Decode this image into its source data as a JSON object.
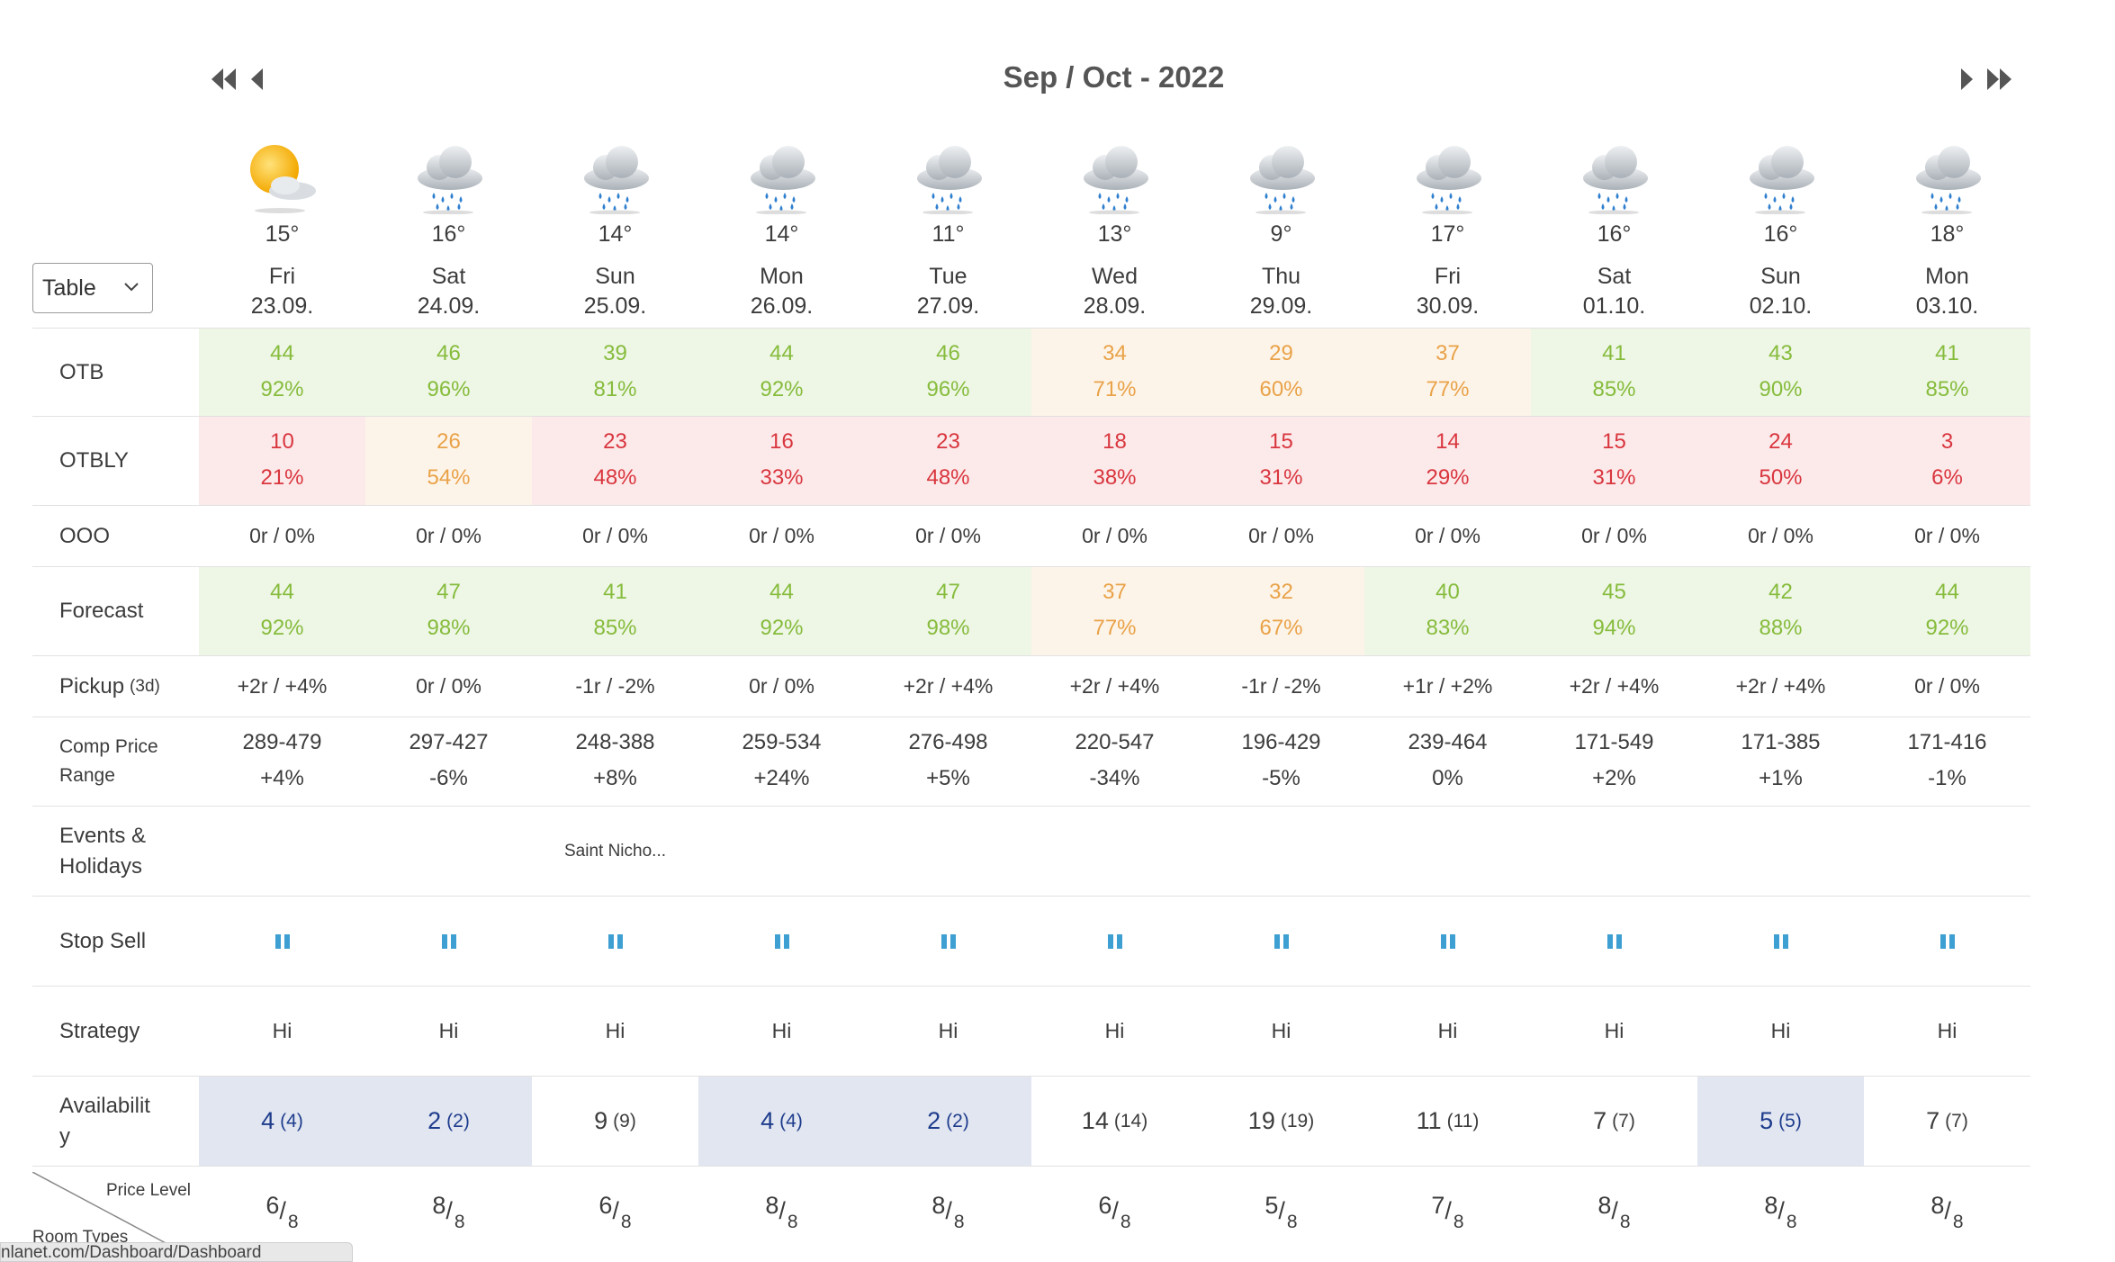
{
  "header": {
    "title": "Sep / Oct - 2022"
  },
  "view_select": {
    "value": "Table"
  },
  "days": [
    {
      "temp": "15°",
      "day": "Fri",
      "date": "23.09.",
      "weather": "sun-cloud-icon"
    },
    {
      "temp": "16°",
      "day": "Sat",
      "date": "24.09.",
      "weather": "rain-cloud-icon"
    },
    {
      "temp": "14°",
      "day": "Sun",
      "date": "25.09.",
      "weather": "rain-cloud-icon"
    },
    {
      "temp": "14°",
      "day": "Mon",
      "date": "26.09.",
      "weather": "rain-cloud-icon"
    },
    {
      "temp": "11°",
      "day": "Tue",
      "date": "27.09.",
      "weather": "rain-cloud-icon"
    },
    {
      "temp": "13°",
      "day": "Wed",
      "date": "28.09.",
      "weather": "rain-cloud-icon"
    },
    {
      "temp": "9°",
      "day": "Thu",
      "date": "29.09.",
      "weather": "rain-cloud-icon"
    },
    {
      "temp": "17°",
      "day": "Fri",
      "date": "30.09.",
      "weather": "rain-cloud-icon"
    },
    {
      "temp": "16°",
      "day": "Sat",
      "date": "01.10.",
      "weather": "rain-cloud-icon"
    },
    {
      "temp": "16°",
      "day": "Sun",
      "date": "02.10.",
      "weather": "rain-cloud-icon"
    },
    {
      "temp": "18°",
      "day": "Mon",
      "date": "03.10.",
      "weather": "rain-cloud-icon"
    }
  ],
  "rows": {
    "otb": {
      "label": "OTB",
      "cells": [
        {
          "v1": "44",
          "v2": "92%",
          "tone": "green"
        },
        {
          "v1": "46",
          "v2": "96%",
          "tone": "green"
        },
        {
          "v1": "39",
          "v2": "81%",
          "tone": "green"
        },
        {
          "v1": "44",
          "v2": "92%",
          "tone": "green"
        },
        {
          "v1": "46",
          "v2": "96%",
          "tone": "green"
        },
        {
          "v1": "34",
          "v2": "71%",
          "tone": "orange"
        },
        {
          "v1": "29",
          "v2": "60%",
          "tone": "orange"
        },
        {
          "v1": "37",
          "v2": "77%",
          "tone": "orange"
        },
        {
          "v1": "41",
          "v2": "85%",
          "tone": "green"
        },
        {
          "v1": "43",
          "v2": "90%",
          "tone": "green"
        },
        {
          "v1": "41",
          "v2": "85%",
          "tone": "green"
        }
      ]
    },
    "otbly": {
      "label": "OTBLY",
      "cells": [
        {
          "v1": "10",
          "v2": "21%",
          "tone": "red"
        },
        {
          "v1": "26",
          "v2": "54%",
          "tone": "orange"
        },
        {
          "v1": "23",
          "v2": "48%",
          "tone": "red"
        },
        {
          "v1": "16",
          "v2": "33%",
          "tone": "red"
        },
        {
          "v1": "23",
          "v2": "48%",
          "tone": "red"
        },
        {
          "v1": "18",
          "v2": "38%",
          "tone": "red"
        },
        {
          "v1": "15",
          "v2": "31%",
          "tone": "red"
        },
        {
          "v1": "14",
          "v2": "29%",
          "tone": "red"
        },
        {
          "v1": "15",
          "v2": "31%",
          "tone": "red"
        },
        {
          "v1": "24",
          "v2": "50%",
          "tone": "red"
        },
        {
          "v1": "3",
          "v2": "6%",
          "tone": "red"
        }
      ]
    },
    "ooo": {
      "label": "OOO",
      "cells": [
        "0r / 0%",
        "0r / 0%",
        "0r / 0%",
        "0r / 0%",
        "0r / 0%",
        "0r / 0%",
        "0r / 0%",
        "0r / 0%",
        "0r / 0%",
        "0r / 0%",
        "0r / 0%"
      ]
    },
    "forecast": {
      "label": "Forecast",
      "cells": [
        {
          "v1": "44",
          "v2": "92%",
          "tone": "green"
        },
        {
          "v1": "47",
          "v2": "98%",
          "tone": "green"
        },
        {
          "v1": "41",
          "v2": "85%",
          "tone": "green"
        },
        {
          "v1": "44",
          "v2": "92%",
          "tone": "green"
        },
        {
          "v1": "47",
          "v2": "98%",
          "tone": "green"
        },
        {
          "v1": "37",
          "v2": "77%",
          "tone": "orange"
        },
        {
          "v1": "32",
          "v2": "67%",
          "tone": "orange"
        },
        {
          "v1": "40",
          "v2": "83%",
          "tone": "green"
        },
        {
          "v1": "45",
          "v2": "94%",
          "tone": "green"
        },
        {
          "v1": "42",
          "v2": "88%",
          "tone": "green"
        },
        {
          "v1": "44",
          "v2": "92%",
          "tone": "green"
        }
      ]
    },
    "pickup": {
      "label": "Pickup",
      "label_sub": "(3d)",
      "cells": [
        "+2r / +4%",
        "0r / 0%",
        "-1r / -2%",
        "0r / 0%",
        "+2r / +4%",
        "+2r / +4%",
        "-1r / -2%",
        "+1r / +2%",
        "+2r / +4%",
        "+2r / +4%",
        "0r / 0%"
      ]
    },
    "comp_price": {
      "label_line1": "Comp Price",
      "label_line2": "Range",
      "cells": [
        {
          "v1": "289-479",
          "v2": "+4%"
        },
        {
          "v1": "297-427",
          "v2": "-6%"
        },
        {
          "v1": "248-388",
          "v2": "+8%"
        },
        {
          "v1": "259-534",
          "v2": "+24%"
        },
        {
          "v1": "276-498",
          "v2": "+5%"
        },
        {
          "v1": "220-547",
          "v2": "-34%"
        },
        {
          "v1": "196-429",
          "v2": "-5%"
        },
        {
          "v1": "239-464",
          "v2": "0%"
        },
        {
          "v1": "171-549",
          "v2": "+2%"
        },
        {
          "v1": "171-385",
          "v2": "+1%"
        },
        {
          "v1": "171-416",
          "v2": "-1%"
        }
      ]
    },
    "events": {
      "label_line1": "Events &",
      "label_line2": "Holidays",
      "cells": [
        "",
        "",
        "Saint Nicho...",
        "",
        "",
        "",
        "",
        "",
        "",
        "",
        ""
      ]
    },
    "stop_sell": {
      "label": "Stop Sell",
      "icon": "pause-icon",
      "color": "#3e9fd2"
    },
    "strategy": {
      "label": "Strategy",
      "cells": [
        "Hi",
        "Hi",
        "Hi",
        "Hi",
        "Hi",
        "Hi",
        "Hi",
        "Hi",
        "Hi",
        "Hi",
        "Hi"
      ]
    },
    "availability": {
      "label_line1": "Availabilit",
      "label_line2": "y",
      "cells": [
        {
          "v": "4",
          "p": "(4)",
          "hl": true
        },
        {
          "v": "2",
          "p": "(2)",
          "hl": true
        },
        {
          "v": "9",
          "p": "(9)",
          "hl": false
        },
        {
          "v": "4",
          "p": "(4)",
          "hl": true
        },
        {
          "v": "2",
          "p": "(2)",
          "hl": true
        },
        {
          "v": "14",
          "p": "(14)",
          "hl": false
        },
        {
          "v": "19",
          "p": "(19)",
          "hl": false
        },
        {
          "v": "11",
          "p": "(11)",
          "hl": false
        },
        {
          "v": "7",
          "p": "(7)",
          "hl": false
        },
        {
          "v": "5",
          "p": "(5)",
          "hl": true
        },
        {
          "v": "7",
          "p": "(7)",
          "hl": false
        }
      ]
    },
    "price_level": {
      "header_top": "Price Level",
      "header_bottom": "Room Types",
      "cells": [
        {
          "n": "6",
          "d": "8"
        },
        {
          "n": "8",
          "d": "8"
        },
        {
          "n": "6",
          "d": "8"
        },
        {
          "n": "8",
          "d": "8"
        },
        {
          "n": "8",
          "d": "8"
        },
        {
          "n": "6",
          "d": "8"
        },
        {
          "n": "5",
          "d": "8"
        },
        {
          "n": "7",
          "d": "8"
        },
        {
          "n": "8",
          "d": "8"
        },
        {
          "n": "8",
          "d": "8"
        },
        {
          "n": "8",
          "d": "8"
        }
      ]
    }
  },
  "colors": {
    "green_bg": "#eef6e6",
    "green_text": "#86bc3c",
    "orange_bg": "#fdf4e9",
    "orange_text": "#e9a248",
    "red_bg": "#fce9ea",
    "red_text": "#d9363e",
    "avail_highlight_bg": "#e1e6f1",
    "avail_highlight_text": "#1e3c8c"
  },
  "status_bar": {
    "url": "nlanet.com/Dashboard/Dashboard"
  }
}
